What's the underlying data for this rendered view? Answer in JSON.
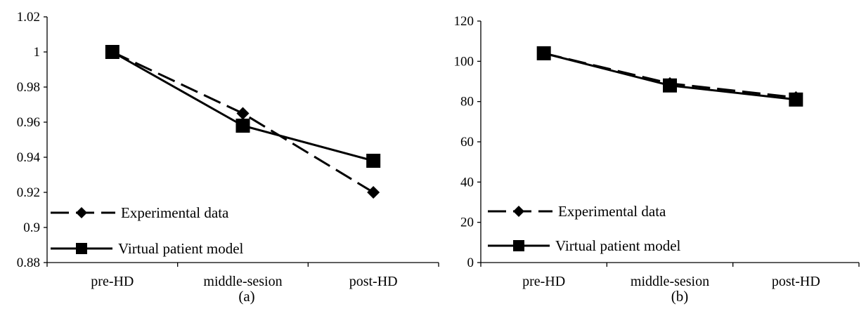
{
  "chart_data": [
    {
      "type": "line",
      "subtitle": "(a)",
      "categories": [
        "pre-HD",
        "middle-sesion",
        "post-HD"
      ],
      "ylim": [
        0.88,
        1.02
      ],
      "yticks": [
        "1.02",
        "1",
        "0.98",
        "0.96",
        "0.94",
        "0.92",
        "0.9",
        "0.88"
      ],
      "ytick_values": [
        1.02,
        1.0,
        0.98,
        0.96,
        0.94,
        0.92,
        0.9,
        0.88
      ],
      "grid": false,
      "legend_position": "bottom-left",
      "series": [
        {
          "name": "Experimental data",
          "values": [
            1.0,
            0.965,
            0.92
          ],
          "line": "dashed",
          "marker": "diamond"
        },
        {
          "name": "Virtual patient model",
          "values": [
            1.0,
            0.958,
            0.938
          ],
          "line": "solid",
          "marker": "square"
        }
      ]
    },
    {
      "type": "line",
      "subtitle": "(b)",
      "categories": [
        "pre-HD",
        "middle-sesion",
        "post-HD"
      ],
      "ylim": [
        0,
        120
      ],
      "yticks": [
        "120",
        "100",
        "80",
        "60",
        "40",
        "20",
        "0"
      ],
      "ytick_values": [
        120,
        100,
        80,
        60,
        40,
        20,
        0
      ],
      "grid": false,
      "legend_position": "bottom-left",
      "series": [
        {
          "name": "Experimental data",
          "values": [
            104,
            89,
            82
          ],
          "line": "dashed",
          "marker": "diamond"
        },
        {
          "name": "Virtual patient model",
          "values": [
            104,
            88,
            81
          ],
          "line": "solid",
          "marker": "square"
        }
      ]
    }
  ]
}
